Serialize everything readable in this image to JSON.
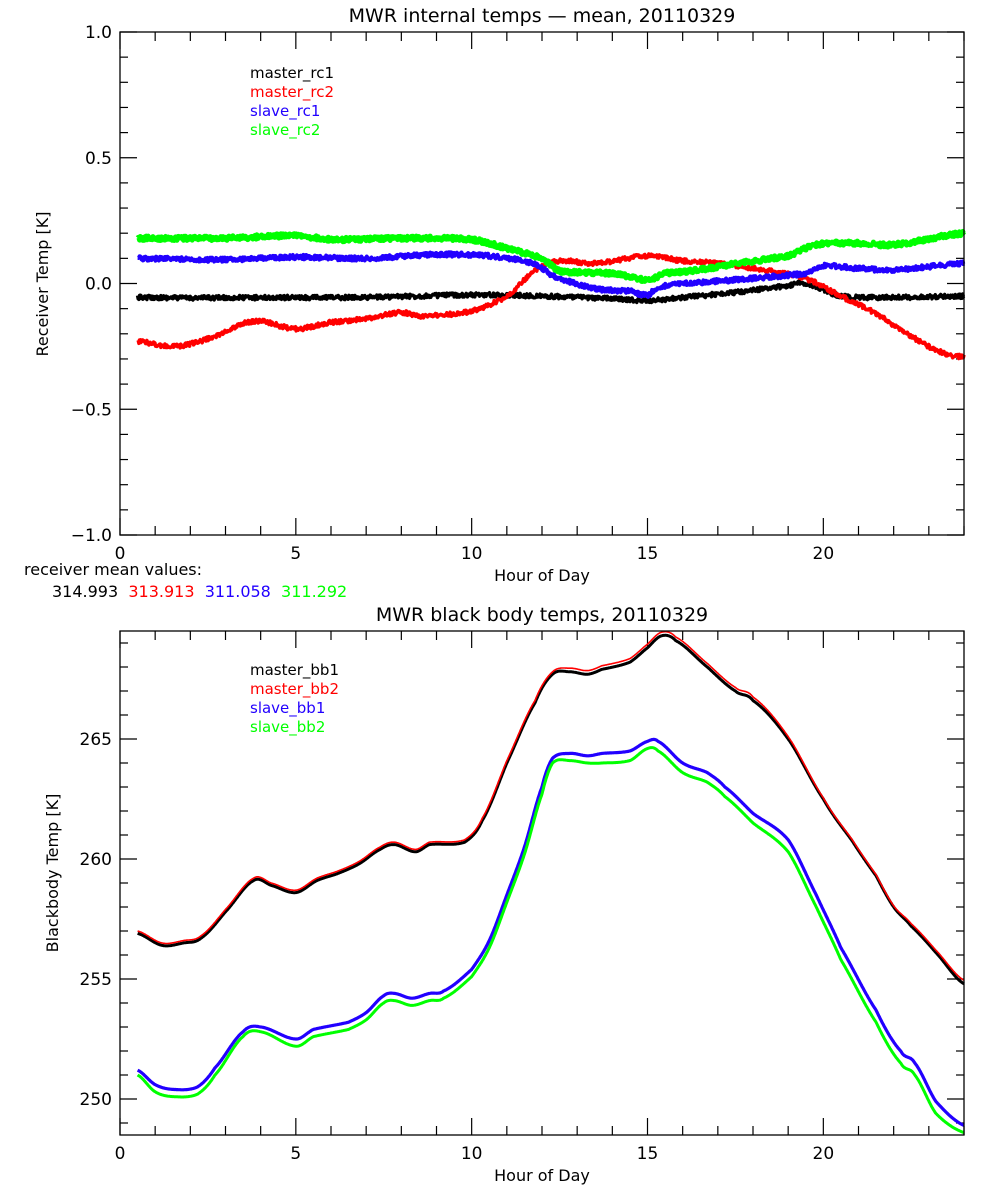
{
  "chart_data": [
    {
      "type": "line",
      "title": "MWR internal temps — mean, 20110329",
      "xlabel": "Hour of Day",
      "ylabel": "Receiver Temp [K]",
      "xlim": [
        0,
        24
      ],
      "ylim": [
        -1.0,
        1.0
      ],
      "xticks": [
        0,
        5,
        10,
        15,
        20
      ],
      "xtick_labels": [
        "0",
        "5",
        "10",
        "15",
        "20"
      ],
      "yticks": [
        -1.0,
        -0.5,
        0.0,
        0.5,
        1.0
      ],
      "ytick_labels": [
        "−1.0",
        "−0.5",
        "0.0",
        "0.5",
        "1.0"
      ],
      "x_minor_step": 1,
      "y_minor_step": 0.1,
      "grid": false,
      "legend_position": "top-left",
      "series": [
        {
          "name": "master_rc1",
          "color": "#000000",
          "noisy": true,
          "x": [
            0.5,
            2,
            4,
            6,
            8,
            10,
            12,
            14,
            15,
            16,
            17.5,
            19,
            19.5,
            20.5,
            22,
            24
          ],
          "y": [
            -0.055,
            -0.057,
            -0.056,
            -0.056,
            -0.052,
            -0.045,
            -0.05,
            -0.06,
            -0.068,
            -0.055,
            -0.035,
            -0.01,
            0.0,
            -0.05,
            -0.055,
            -0.05
          ]
        },
        {
          "name": "master_rc2",
          "color": "#ff0000",
          "noisy": true,
          "x": [
            0.5,
            1.5,
            2.5,
            3.8,
            5,
            6,
            7,
            8,
            8.5,
            10,
            11,
            11.8,
            12.5,
            13.5,
            15,
            16,
            17,
            18.5,
            19.5,
            20.5,
            21.5,
            22.5,
            23.5,
            24
          ],
          "y": [
            -0.23,
            -0.25,
            -0.22,
            -0.15,
            -0.18,
            -0.155,
            -0.14,
            -0.115,
            -0.13,
            -0.11,
            -0.05,
            0.05,
            0.09,
            0.08,
            0.11,
            0.09,
            0.08,
            0.05,
            0.02,
            -0.05,
            -0.12,
            -0.21,
            -0.28,
            -0.29
          ]
        },
        {
          "name": "slave_rc1",
          "color": "#2200ff",
          "noisy": true,
          "x": [
            0.5,
            3,
            5,
            7,
            9,
            10.5,
            11.8,
            12.3,
            13.5,
            14.5,
            15,
            15.3,
            16,
            18,
            19.5,
            20,
            21,
            22,
            24
          ],
          "y": [
            0.1,
            0.095,
            0.105,
            0.1,
            0.115,
            0.11,
            0.08,
            0.03,
            -0.02,
            -0.03,
            -0.045,
            -0.015,
            0.0,
            0.02,
            0.04,
            0.07,
            0.06,
            0.055,
            0.08
          ]
        },
        {
          "name": "slave_rc2",
          "color": "#00ff00",
          "noisy": true,
          "x": [
            0.5,
            3,
            5,
            6,
            8,
            10,
            11,
            12,
            12.5,
            14,
            15,
            15.5,
            16.5,
            17.5,
            19,
            19.8,
            21,
            22,
            24
          ],
          "y": [
            0.18,
            0.18,
            0.19,
            0.175,
            0.18,
            0.175,
            0.14,
            0.1,
            0.05,
            0.04,
            0.015,
            0.04,
            0.055,
            0.08,
            0.11,
            0.155,
            0.16,
            0.155,
            0.2
          ]
        }
      ]
    },
    {
      "type": "line",
      "title": "MWR black body temps, 20110329",
      "xlabel": "Hour of Day",
      "ylabel": "Blackbody Temp [K]",
      "xlim": [
        0,
        24
      ],
      "ylim": [
        248.5,
        269.5
      ],
      "xticks": [
        0,
        5,
        10,
        15,
        20
      ],
      "xtick_labels": [
        "0",
        "5",
        "10",
        "15",
        "20"
      ],
      "yticks": [
        250,
        255,
        260,
        265
      ],
      "ytick_labels": [
        "250",
        "255",
        "260",
        "265"
      ],
      "x_minor_step": 1,
      "y_minor_step": 1,
      "grid": false,
      "legend_position": "top-left",
      "series": [
        {
          "name": "master_bb1",
          "color": "#000000",
          "noisy": false,
          "x": [
            0.5,
            1.2,
            1.8,
            2.3,
            3.0,
            3.8,
            4.3,
            5.0,
            5.6,
            6.2,
            6.8,
            7.4,
            7.8,
            8.4,
            8.8,
            9.8,
            10.3,
            11.0,
            11.8,
            12.3,
            12.8,
            13.3,
            13.7,
            14.5,
            15.0,
            15.4,
            15.8,
            16.7,
            17.5,
            18.0,
            19.0,
            20.0,
            20.8,
            21.5,
            22.0,
            22.5,
            23.2,
            24.0
          ],
          "y": [
            256.9,
            256.4,
            256.5,
            256.7,
            257.8,
            259.1,
            258.9,
            258.6,
            259.1,
            259.4,
            259.8,
            260.4,
            260.6,
            260.3,
            260.6,
            260.7,
            261.6,
            264.0,
            266.5,
            267.7,
            267.8,
            267.7,
            267.9,
            268.2,
            268.8,
            269.3,
            269.1,
            268.0,
            267.0,
            266.6,
            265.0,
            262.5,
            260.8,
            259.3,
            258.0,
            257.2,
            256.1,
            254.8
          ]
        },
        {
          "name": "master_bb2",
          "color": "#ff0000",
          "noisy": false,
          "x": [
            0.5,
            1.2,
            1.8,
            2.3,
            3.0,
            3.8,
            4.3,
            5.0,
            5.6,
            6.2,
            6.8,
            7.4,
            7.8,
            8.4,
            8.8,
            9.8,
            10.3,
            11.0,
            11.8,
            12.3,
            12.8,
            13.3,
            13.7,
            14.5,
            15.0,
            15.4,
            15.8,
            16.7,
            17.5,
            18.0,
            19.0,
            20.0,
            20.8,
            21.5,
            22.0,
            22.5,
            23.2,
            24.0
          ],
          "y": [
            257.0,
            256.5,
            256.6,
            256.8,
            257.9,
            259.2,
            259.0,
            258.7,
            259.2,
            259.5,
            259.9,
            260.5,
            260.7,
            260.4,
            260.7,
            260.8,
            261.7,
            264.1,
            266.6,
            267.8,
            267.95,
            267.85,
            268.05,
            268.35,
            268.95,
            269.45,
            269.25,
            268.15,
            267.15,
            266.75,
            265.1,
            262.55,
            260.85,
            259.35,
            258.05,
            257.3,
            256.2,
            254.95
          ]
        },
        {
          "name": "slave_bb1",
          "color": "#2200ff",
          "noisy": false,
          "x": [
            0.5,
            1.0,
            1.5,
            2.2,
            2.7,
            3.5,
            4.0,
            5.0,
            5.5,
            6.5,
            7.0,
            7.5,
            7.8,
            8.3,
            8.8,
            9.2,
            10.0,
            10.5,
            11.0,
            11.5,
            12.0,
            12.3,
            12.8,
            13.3,
            13.7,
            14.5,
            15.0,
            15.3,
            16.0,
            16.7,
            17.2,
            18.0,
            19.0,
            19.8,
            20.5,
            21.5,
            22.2,
            22.6,
            23.2,
            24.0
          ],
          "y": [
            251.2,
            250.6,
            250.4,
            250.5,
            251.3,
            252.8,
            253.0,
            252.5,
            252.9,
            253.2,
            253.6,
            254.3,
            254.4,
            254.2,
            254.4,
            254.5,
            255.4,
            256.6,
            258.5,
            260.5,
            263.0,
            264.2,
            264.4,
            264.3,
            264.4,
            264.5,
            264.9,
            264.9,
            264.0,
            263.6,
            263.0,
            261.9,
            260.8,
            258.5,
            256.3,
            253.7,
            252.0,
            251.5,
            249.9,
            248.9
          ]
        },
        {
          "name": "slave_bb2",
          "color": "#00ff00",
          "noisy": false,
          "x": [
            0.5,
            1.0,
            1.5,
            2.2,
            2.7,
            3.5,
            4.0,
            5.0,
            5.5,
            6.5,
            7.0,
            7.5,
            7.8,
            8.3,
            8.8,
            9.2,
            10.0,
            10.5,
            11.0,
            11.5,
            12.0,
            12.3,
            12.8,
            13.3,
            13.7,
            14.5,
            15.0,
            15.3,
            16.0,
            16.7,
            17.2,
            18.0,
            19.0,
            19.8,
            20.5,
            21.5,
            22.2,
            22.6,
            23.2,
            24.0
          ],
          "y": [
            251.0,
            250.3,
            250.1,
            250.2,
            251.0,
            252.6,
            252.8,
            252.2,
            252.6,
            252.9,
            253.3,
            254.0,
            254.1,
            253.9,
            254.1,
            254.2,
            255.1,
            256.3,
            258.2,
            260.2,
            262.7,
            264.0,
            264.1,
            264.0,
            264.0,
            264.1,
            264.6,
            264.5,
            263.6,
            263.2,
            262.6,
            261.5,
            260.3,
            258.0,
            255.8,
            253.2,
            251.5,
            251.0,
            249.4,
            248.6
          ]
        }
      ]
    }
  ],
  "receiver_mean": {
    "label": "receiver mean values:",
    "values": [
      {
        "text": "314.993",
        "color": "#000000"
      },
      {
        "text": "313.913",
        "color": "#ff0000"
      },
      {
        "text": "311.058",
        "color": "#2200ff"
      },
      {
        "text": "311.292",
        "color": "#00ff00"
      }
    ]
  }
}
